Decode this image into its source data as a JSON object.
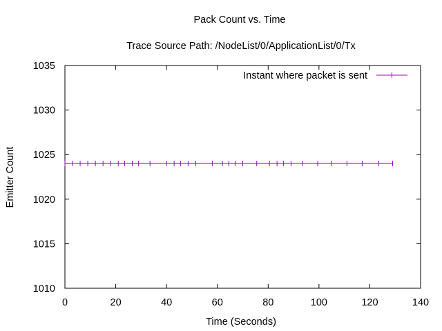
{
  "chart_data": {
    "type": "line",
    "title": "Pack Count vs. Time",
    "subtitle": "Trace Source Path: /NodeList/0/ApplicationList/0/Tx",
    "xlabel": "Time (Seconds)",
    "ylabel": "Emitter Count",
    "xlim": [
      0,
      140
    ],
    "ylim": [
      1010,
      1035
    ],
    "x_ticks": [
      "0",
      "20",
      "40",
      "60",
      "80",
      "100",
      "120",
      "140"
    ],
    "y_ticks": [
      "1010",
      "1015",
      "1020",
      "1025",
      "1030",
      "1035"
    ],
    "grid": false,
    "legend_position": "top-right",
    "series": [
      {
        "name": "Instant where packet is sent",
        "color": "#9400d3",
        "x": [
          0,
          3,
          6,
          9,
          12,
          15,
          18,
          21,
          23.5,
          26.5,
          29,
          33.5,
          40,
          43,
          45.5,
          48.5,
          51.5,
          58,
          62,
          64.5,
          67,
          70,
          75.5,
          80.5,
          83.5,
          86,
          89,
          93.5,
          99.5,
          105,
          111,
          117,
          123.5,
          129
        ],
        "y": [
          1024,
          1024,
          1024,
          1024,
          1024,
          1024,
          1024,
          1024,
          1024,
          1024,
          1024,
          1024,
          1024,
          1024,
          1024,
          1024,
          1024,
          1024,
          1024,
          1024,
          1024,
          1024,
          1024,
          1024,
          1024,
          1024,
          1024,
          1024,
          1024,
          1024,
          1024,
          1024,
          1024,
          1024
        ]
      }
    ]
  }
}
